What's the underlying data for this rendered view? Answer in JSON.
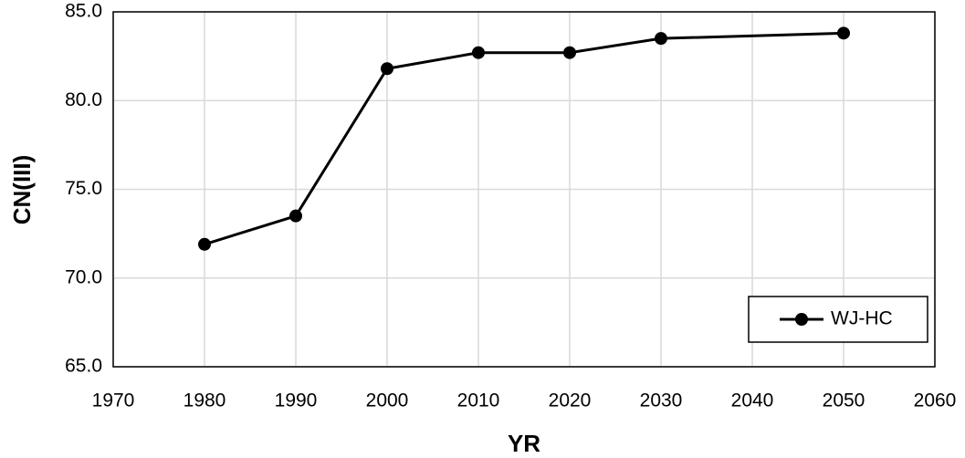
{
  "chart_data": {
    "type": "line",
    "x_label": "YR",
    "y_label": "CN(III)",
    "x": [
      1980,
      1990,
      2000,
      2010,
      2020,
      2030,
      2050
    ],
    "series": [
      {
        "name": "WJ-HC",
        "color": "#000000",
        "values": [
          71.9,
          73.5,
          81.8,
          82.7,
          82.7,
          83.5,
          83.8
        ]
      }
    ],
    "xlim": [
      1970,
      2060
    ],
    "xticks": [
      1970,
      1980,
      1990,
      2000,
      2010,
      2020,
      2030,
      2040,
      2050,
      2060
    ],
    "ylim": [
      65,
      85
    ],
    "yticks": [
      {
        "value": 65,
        "label": "65.0"
      },
      {
        "value": 70,
        "label": "70.0"
      },
      {
        "value": 75,
        "label": "75.0"
      },
      {
        "value": 80,
        "label": "80.0"
      },
      {
        "value": 85,
        "label": "85.0"
      }
    ],
    "grid": true,
    "legend": "lower-right"
  }
}
